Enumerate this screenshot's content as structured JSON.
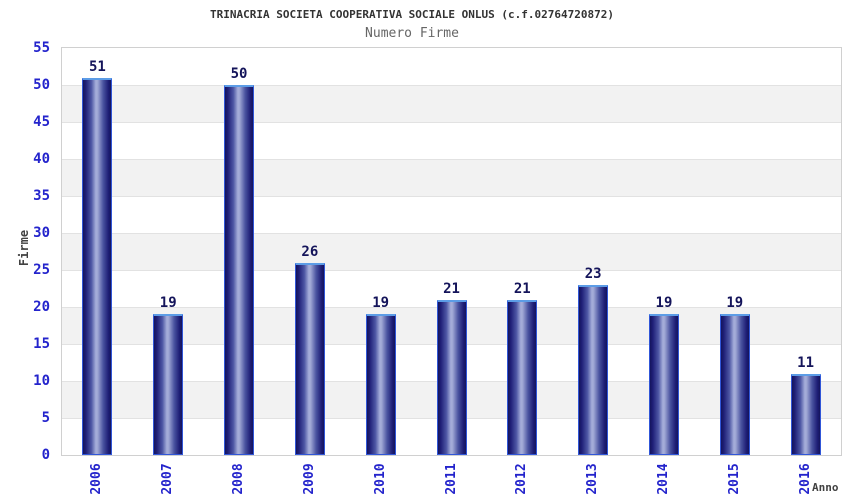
{
  "chart_data": {
    "type": "bar",
    "title": "TRINACRIA SOCIETA COOPERATIVA SOCIALE ONLUS (c.f.02764720872)",
    "subtitle": "Numero Firme",
    "xlabel": "Anno",
    "ylabel": "Firme",
    "categories": [
      "2006",
      "2007",
      "2008",
      "2009",
      "2010",
      "2011",
      "2012",
      "2013",
      "2014",
      "2015",
      "2016"
    ],
    "values": [
      51,
      19,
      50,
      26,
      19,
      21,
      21,
      23,
      19,
      19,
      11
    ],
    "ylim": [
      0,
      55
    ],
    "ytick_step": 5,
    "grid": true,
    "legend": "none",
    "band_fill_alternating": true,
    "colors": {
      "title": "#333333",
      "subtitle": "#666666",
      "axis_title": "#424242",
      "tick_label": "#2424cc",
      "value_label": "#14145a",
      "bar_border": "#3056d8",
      "bar_top_highlight": "#5c9ce6",
      "bar_gradient_dark": "#15155c",
      "bar_gradient_light": "#a6aeda",
      "band_gray": "#f2f2f2",
      "gridline": "#e2e2e2",
      "plot_border": "#d0d0d0",
      "background": "#ffffff"
    }
  }
}
